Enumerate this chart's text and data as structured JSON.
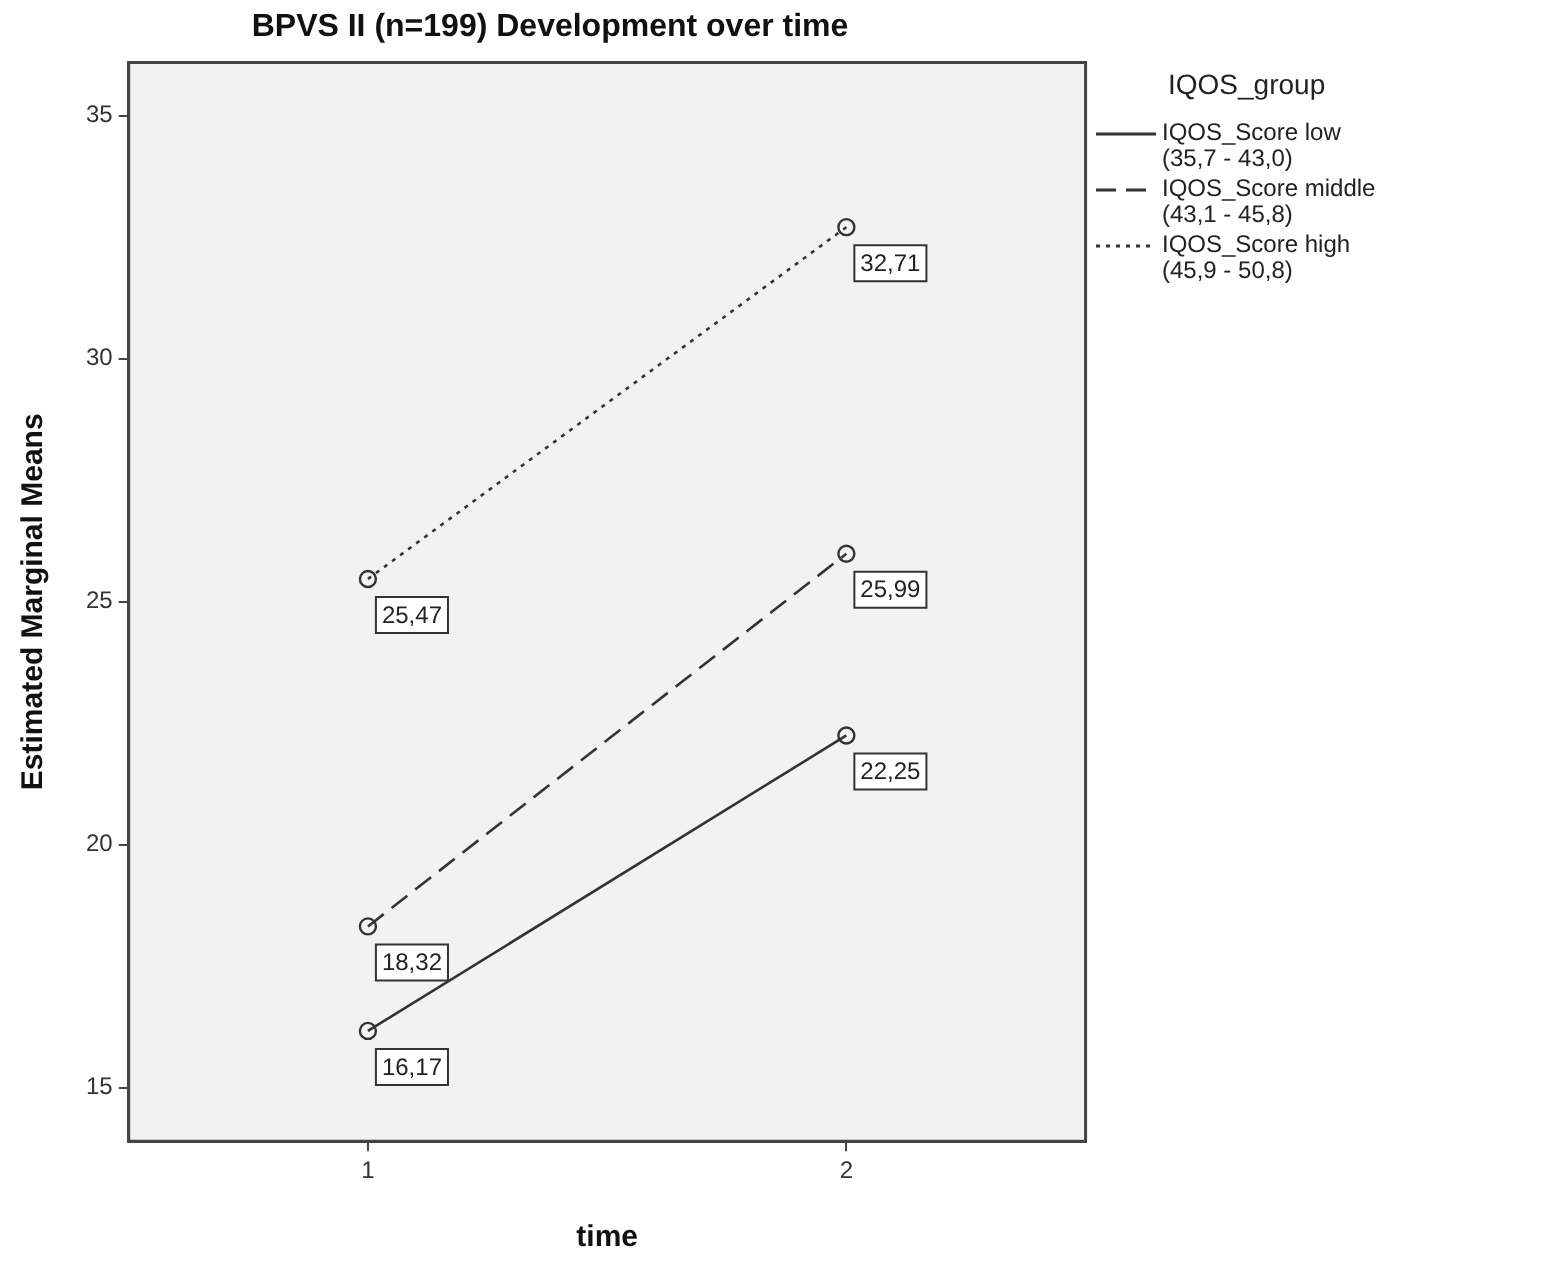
{
  "chart_data": {
    "type": "line",
    "title": "BPVS II (n=199) Development over time",
    "xlabel": "time",
    "ylabel": "Estimated Marginal Means",
    "legend_title": "IQOS_group",
    "categories": [
      "1",
      "2"
    ],
    "ylim": [
      13.9,
      36.1
    ],
    "yticks": [
      15,
      20,
      25,
      30,
      35
    ],
    "grid": false,
    "legend": "right",
    "marker": "circle",
    "series": [
      {
        "name": "IQOS_Score low (35,7 - 43,0)",
        "color": "#333333",
        "line_style": "solid",
        "values": [
          16.17,
          22.25
        ],
        "value_labels": [
          "16,17",
          "22,25"
        ]
      },
      {
        "name": "IQOS_Score middle (43,1 - 45,8)",
        "color": "#333333",
        "line_style": "dashed",
        "values": [
          18.32,
          25.99
        ],
        "value_labels": [
          "18,32",
          "25,99"
        ]
      },
      {
        "name": "IQOS_Score high (45,9 - 50,8)",
        "color": "#333333",
        "line_style": "dotted",
        "values": [
          25.47,
          32.71
        ],
        "value_labels": [
          "25,47",
          "32,71"
        ]
      }
    ]
  }
}
